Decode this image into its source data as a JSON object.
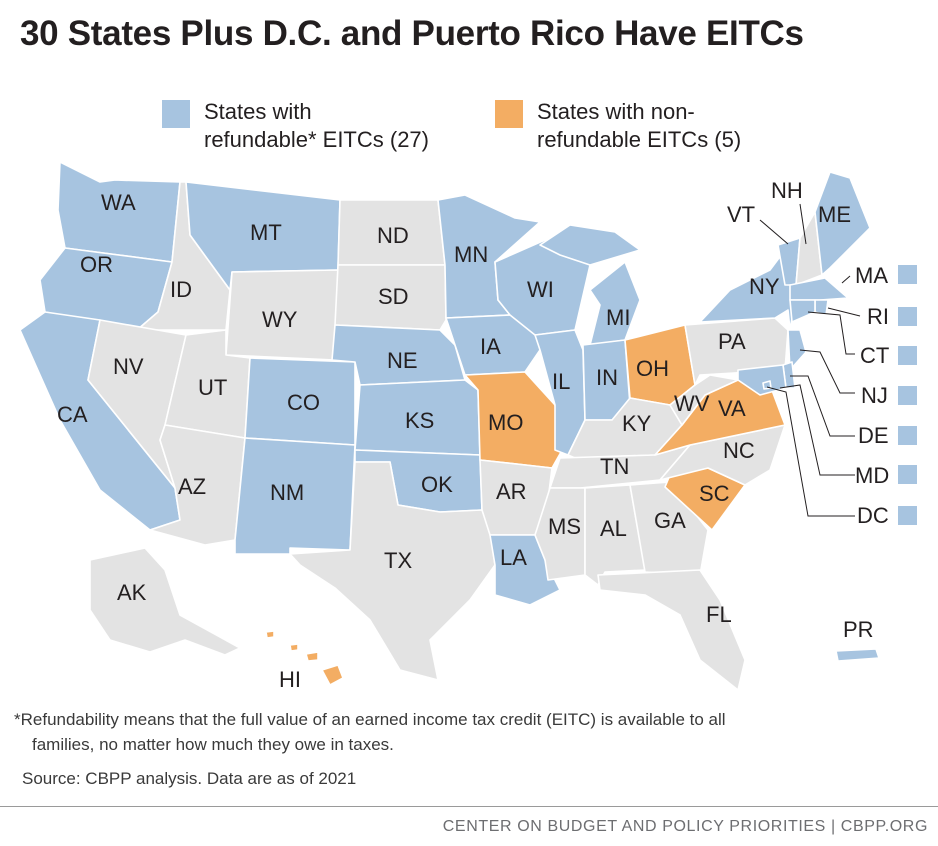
{
  "title": "30 States Plus D.C. and Puerto Rico Have EITCs",
  "colors": {
    "refundable": "#a7c4e0",
    "nonrefundable": "#f3ad63",
    "none": "#e3e3e3",
    "border": "#ffffff",
    "text": "#231f20"
  },
  "legend": {
    "refundable": {
      "line1": "States with",
      "line2": "refundable* EITCs (27)"
    },
    "nonrefundable": {
      "line1": "States with non-",
      "line2": "refundable EITCs (5)"
    }
  },
  "states": {
    "WA": "WA",
    "OR": "OR",
    "CA": "CA",
    "ID": "ID",
    "NV": "NV",
    "MT": "MT",
    "WY": "WY",
    "UT": "UT",
    "AZ": "AZ",
    "CO": "CO",
    "NM": "NM",
    "ND": "ND",
    "SD": "SD",
    "NE": "NE",
    "KS": "KS",
    "OK": "OK",
    "TX": "TX",
    "MN": "MN",
    "IA": "IA",
    "MO": "MO",
    "AR": "AR",
    "LA": "LA",
    "WI": "WI",
    "IL": "IL",
    "MI": "MI",
    "IN": "IN",
    "OH": "OH",
    "KY": "KY",
    "TN": "TN",
    "MS": "MS",
    "AL": "AL",
    "GA": "GA",
    "FL": "FL",
    "SC": "SC",
    "NC": "NC",
    "VA": "VA",
    "WV": "WV",
    "PA": "PA",
    "NY": "NY",
    "VT": "VT",
    "NH": "NH",
    "ME": "ME",
    "MA": "MA",
    "RI": "RI",
    "CT": "CT",
    "NJ": "NJ",
    "DE": "DE",
    "MD": "MD",
    "DC": "DC",
    "AK": "AK",
    "HI": "HI",
    "PR": "PR"
  },
  "status": {
    "refundable": [
      "WA",
      "OR",
      "CA",
      "MT",
      "CO",
      "NM",
      "NE",
      "KS",
      "OK",
      "MN",
      "IA",
      "WI",
      "IL",
      "MI",
      "IN",
      "LA",
      "NY",
      "VT",
      "ME",
      "MA",
      "RI",
      "CT",
      "NJ",
      "DE",
      "MD",
      "DC",
      "PR"
    ],
    "nonrefundable": [
      "MO",
      "OH",
      "VA",
      "SC",
      "HI"
    ],
    "none": [
      "ID",
      "NV",
      "WY",
      "UT",
      "AZ",
      "ND",
      "SD",
      "TX",
      "AR",
      "KY",
      "TN",
      "MS",
      "AL",
      "GA",
      "FL",
      "NC",
      "WV",
      "PA",
      "NH",
      "AK"
    ]
  },
  "footnote": {
    "line1": "*Refundability means that the full value of an earned income tax credit (EITC) is available to all",
    "line2": "families, no matter how much they owe in taxes."
  },
  "source": "Source: CBPP analysis. Data are as of 2021",
  "credit": "CENTER ON BUDGET AND POLICY PRIORITIES | CBPP.ORG"
}
